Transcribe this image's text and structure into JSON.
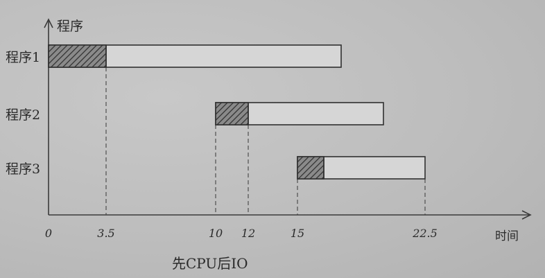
{
  "diagram": {
    "y_axis_label": "程序",
    "x_axis_label": "时间",
    "caption": "先CPU后IO",
    "processes": [
      {
        "label": "程序1",
        "start": 0,
        "cpu_end": 3.5,
        "end": 17.5
      },
      {
        "label": "程序2",
        "start": 10,
        "cpu_end": 12,
        "end": 20
      },
      {
        "label": "程序3",
        "start": 15,
        "cpu_end": 17,
        "end": 22.5
      }
    ],
    "ticks": [
      {
        "value": 0,
        "label": "0"
      },
      {
        "value": 3.5,
        "label": "3.5"
      },
      {
        "value": 10,
        "label": "10"
      },
      {
        "value": 12,
        "label": "12"
      },
      {
        "value": 15,
        "label": "15"
      },
      {
        "value": 22.5,
        "label": "22.5"
      }
    ],
    "colors": {
      "ink": "#2a2a2a",
      "paper": "#bcbcbc",
      "bar_fill": "#d6d6d6",
      "hatch_fill": "#6e6e6e"
    }
  }
}
